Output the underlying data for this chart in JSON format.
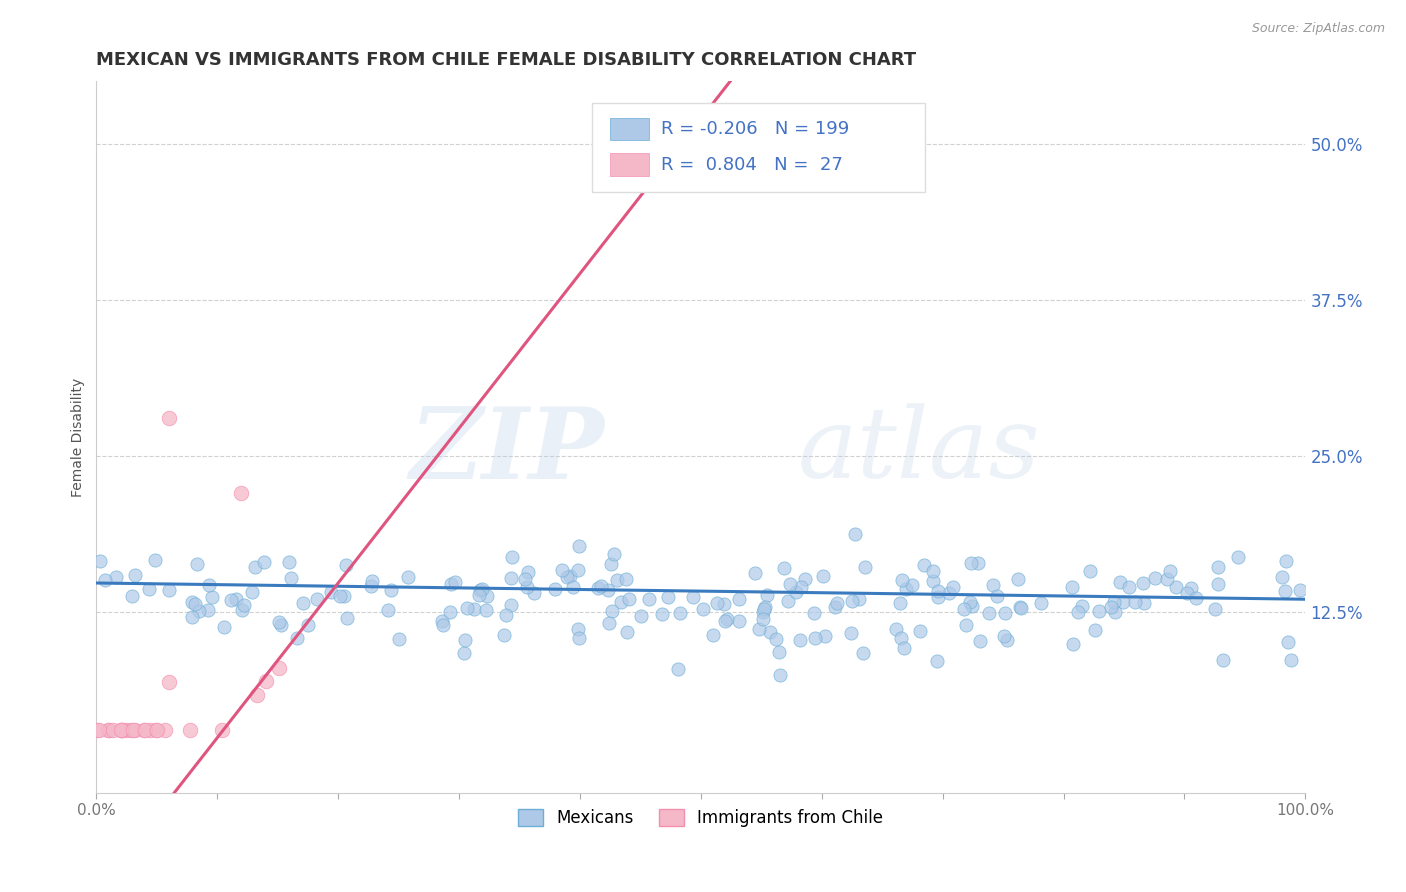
{
  "title": "MEXICAN VS IMMIGRANTS FROM CHILE FEMALE DISABILITY CORRELATION CHART",
  "source": "Source: ZipAtlas.com",
  "ylabel": "Female Disability",
  "xlim": [
    0.0,
    1.0
  ],
  "ylim": [
    -0.02,
    0.55
  ],
  "yticks": [
    0.125,
    0.25,
    0.375,
    0.5
  ],
  "ytick_labels": [
    "12.5%",
    "25.0%",
    "37.5%",
    "50.0%"
  ],
  "xticks": [
    0.0,
    0.1,
    0.2,
    0.3,
    0.4,
    0.5,
    0.6,
    0.7,
    0.8,
    0.9,
    1.0
  ],
  "xtick_labels": [
    "0.0%",
    "",
    "",
    "",
    "",
    "",
    "",
    "",
    "",
    "",
    "100.0%"
  ],
  "blue_R": -0.206,
  "blue_N": 199,
  "pink_R": 0.804,
  "pink_N": 27,
  "blue_color": "#aec9e8",
  "pink_color": "#f4b8c8",
  "blue_edge_color": "#6baed6",
  "pink_edge_color": "#f48fb1",
  "blue_line_color": "#3a7bbf",
  "pink_line_color": "#e05580",
  "legend_blue_label": "Mexicans",
  "legend_pink_label": "Immigrants from Chile",
  "watermark_zip": "ZIP",
  "watermark_atlas": "atlas",
  "background_color": "#ffffff",
  "grid_color": "#cccccc",
  "title_fontsize": 13,
  "axis_label_fontsize": 10,
  "tick_color": "#4472c4"
}
